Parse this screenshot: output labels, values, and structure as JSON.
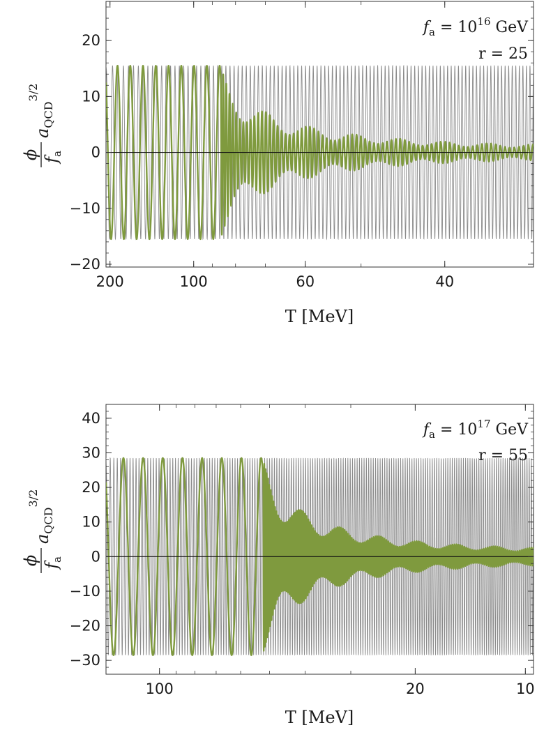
{
  "chart_data": [
    {
      "type": "line",
      "panel": "top",
      "xlabel": "T [MeV]",
      "ylabel": {
        "numerator": "ϕ",
        "denominator": "f",
        "denominator_sub": "a",
        "factor": "a",
        "factor_sub": "QCD",
        "factor_sup": "3/2"
      },
      "annotation": {
        "fa_symbol": "f",
        "fa_sub": "a",
        "fa_eq": " = 10",
        "fa_exp": "16",
        "fa_unit": " GeV",
        "r_text": "r = 25"
      },
      "x_scale": "reciprocal",
      "xlim": [
        210,
        33
      ],
      "ylim": [
        -20.5,
        27
      ],
      "x_ticks": [
        {
          "value": 200,
          "label": "200"
        },
        {
          "value": 100,
          "label": "100"
        },
        {
          "value": 60,
          "label": "60"
        },
        {
          "value": 40,
          "label": "40"
        }
      ],
      "y_ticks": [
        {
          "value": -20,
          "label": "−20"
        },
        {
          "value": -10,
          "label": "−10"
        },
        {
          "value": 0,
          "label": "0"
        },
        {
          "value": 10,
          "label": "10"
        },
        {
          "value": 20,
          "label": "20"
        }
      ],
      "zero_line": true,
      "grid": false,
      "series": [
        {
          "role": "envelope",
          "color": "#8a8a8a",
          "amplitude": 15.5,
          "note_values": "constant amplitude ±15.5 oscillation across the full T range"
        },
        {
          "role": "axion",
          "color": "#7f9a3e",
          "start_value": 12.5,
          "amplitude": 15.5,
          "decay_start_T": 86,
          "amplitude_at_60": 4.5,
          "amplitude_at_40": 2.0,
          "amplitude_at_33": 1.0
        }
      ]
    },
    {
      "type": "line",
      "panel": "bottom",
      "xlabel": "T [MeV]",
      "ylabel": {
        "numerator": "ϕ",
        "denominator": "f",
        "denominator_sub": "a",
        "factor": "a",
        "factor_sub": "QCD",
        "factor_sup": "3/2"
      },
      "annotation": {
        "fa_symbol": "f",
        "fa_sub": "a",
        "fa_eq": " = 10",
        "fa_exp": "17",
        "fa_unit": " GeV",
        "r_text": "r = 55"
      },
      "x_scale": "log",
      "xlim": [
        140,
        9.5
      ],
      "ylim": [
        -34,
        44
      ],
      "x_ticks": [
        {
          "value": 100,
          "label": "100"
        },
        {
          "value": 20,
          "label": "20"
        },
        {
          "value": 10,
          "label": "10"
        }
      ],
      "y_ticks": [
        {
          "value": -30,
          "label": "−30"
        },
        {
          "value": -20,
          "label": "−20"
        },
        {
          "value": -10,
          "label": "−10"
        },
        {
          "value": 0,
          "label": "0"
        },
        {
          "value": 10,
          "label": "10"
        },
        {
          "value": 20,
          "label": "20"
        },
        {
          "value": 30,
          "label": "30"
        },
        {
          "value": 40,
          "label": "40"
        }
      ],
      "zero_line": true,
      "grid": false,
      "series": [
        {
          "role": "envelope",
          "color": "#8a8a8a",
          "amplitude": 28.5,
          "note_values": "constant amplitude ±28.5 oscillation across the full T range"
        },
        {
          "role": "axion",
          "color": "#7f9a3e",
          "start_value": 21.5,
          "amplitude": 28.5,
          "decay_start_T": 52,
          "amplitude_at_20": 5.0,
          "amplitude_at_10": 1.0
        }
      ]
    }
  ]
}
